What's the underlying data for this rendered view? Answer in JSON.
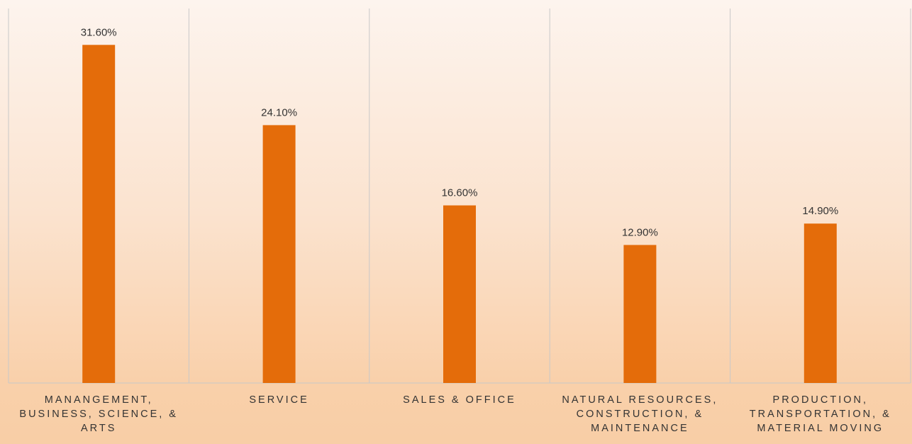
{
  "chart_data": {
    "type": "bar",
    "categories": [
      "MANANGEMENT, BUSINESS, SCIENCE, & ARTS",
      "SERVICE",
      "SALES & OFFICE",
      "NATURAL RESOURCES, CONSTRUCTION, & MAINTENANCE",
      "PRODUCTION, TRANSPORTATION, & MATERIAL MOVING"
    ],
    "values": [
      31.6,
      24.1,
      16.6,
      12.9,
      14.9
    ],
    "value_labels": [
      "31.60%",
      "24.10%",
      "16.60%",
      "12.90%",
      "14.90%"
    ],
    "color": "#e46c0a",
    "ylim": [
      0,
      35
    ]
  }
}
